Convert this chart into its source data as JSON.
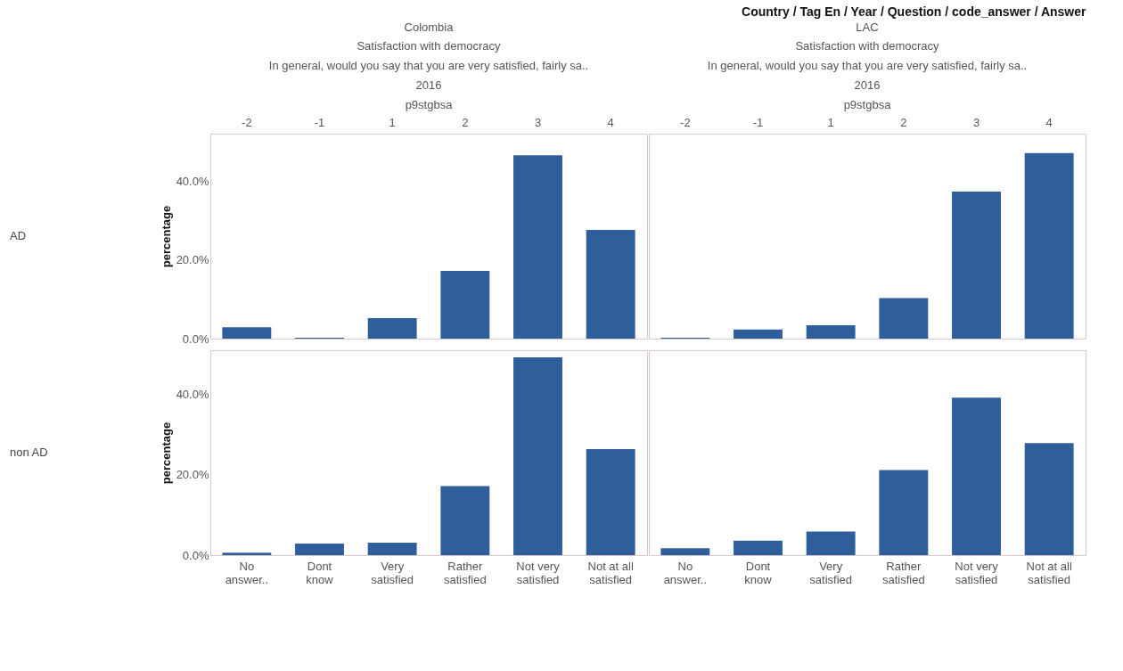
{
  "chart_data": [
    {
      "type": "bar",
      "title": "Colombia",
      "annotations": [
        "Country / Tag En / Year / Question / code_answer / Answer",
        "Satisfaction with democracy",
        "In general, would you say that you are very satisfied, fairly sa..",
        "2016",
        "p9stgbsa",
        "AD"
      ],
      "ylabel": "percentage",
      "categories": [
        "-2",
        "-1",
        "1",
        "2",
        "3",
        "4"
      ],
      "series": [
        {
          "color": "#2f5f9a",
          "values": [
            2.9,
            0.2,
            5.2,
            17.2,
            46.5,
            27.6
          ]
        }
      ],
      "ylim": [
        0,
        52
      ],
      "yticks": [
        {
          "value": 0,
          "label": "0.0%"
        },
        {
          "value": 20,
          "label": "20.0%"
        },
        {
          "value": 40,
          "label": "40.0%"
        }
      ]
    },
    {
      "type": "bar",
      "title": "LAC",
      "annotations": [
        "Satisfaction with democracy",
        "In general, would you say that you are very satisfied, fairly sa..",
        "2016",
        "p9stgbsa"
      ],
      "categories": [
        "-2",
        "-1",
        "1",
        "2",
        "3",
        "4"
      ],
      "series": [
        {
          "color": "#2f5f9a",
          "values": [
            0.2,
            2.3,
            3.4,
            10.3,
            37.3,
            47.1
          ]
        }
      ],
      "ylim": [
        0,
        52
      ],
      "tick_labels": "x"
    },
    {
      "type": "bar",
      "annotations": [
        "non AD"
      ],
      "ylabel": "percentage",
      "categories": [
        "No answer..",
        "Dont know",
        "Very satisfied",
        "Rather satisfied",
        "Not very satisfied",
        "Not at all satisfied"
      ],
      "series": [
        {
          "color": "#2f5f9a",
          "values": [
            0.6,
            2.9,
            3.1,
            17.2,
            49.2,
            26.4
          ]
        }
      ],
      "ylim": [
        0,
        51
      ],
      "yticks": [
        {
          "value": 0,
          "label": "0.0%"
        },
        {
          "value": 20,
          "label": "20.0%"
        },
        {
          "value": 40,
          "label": "40.0%"
        }
      ]
    },
    {
      "type": "bar",
      "categories": [
        "No answer..",
        "Dont know",
        "Very satisfied",
        "Rather satisfied",
        "Not very satisfied",
        "Not at all satisfied"
      ],
      "series": [
        {
          "color": "#2f5f9a",
          "values": [
            1.7,
            3.6,
            5.9,
            21.2,
            39.2,
            27.9
          ]
        }
      ],
      "ylim": [
        0,
        51
      ],
      "tick_labels": "x"
    }
  ]
}
